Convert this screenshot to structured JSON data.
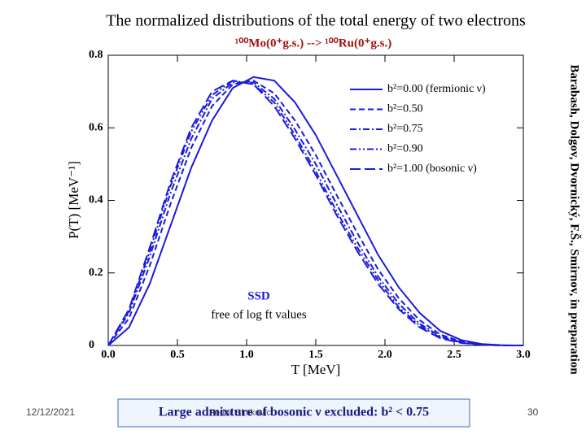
{
  "chart_data": {
    "type": "line",
    "title": "The normalized distributions of the total energy of two electrons",
    "subtitle": "¹⁰⁰Mo(0⁺g.s.) --> ¹⁰⁰Ru(0⁺g.s.)",
    "x_label": "T [MeV]",
    "y_label": "P(T) [MeV⁻¹]",
    "annotations": [
      "SSD",
      "free of log ft values"
    ],
    "x": [
      0,
      0.15,
      0.3,
      0.45,
      0.6,
      0.75,
      0.9,
      1.05,
      1.2,
      1.35,
      1.5,
      1.65,
      1.8,
      1.95,
      2.1,
      2.25,
      2.4,
      2.55,
      2.7,
      2.85,
      3.0
    ],
    "series": [
      {
        "name": "b²=0.00 (fermionic ν)",
        "color": "#1a1adc",
        "dash": "none",
        "values": [
          0,
          0.05,
          0.17,
          0.33,
          0.49,
          0.62,
          0.71,
          0.74,
          0.73,
          0.67,
          0.58,
          0.47,
          0.36,
          0.25,
          0.16,
          0.09,
          0.04,
          0.015,
          0.004,
          0.0005,
          0
        ]
      },
      {
        "name": "b²=0.50",
        "color": "#1a1adc",
        "dash": "7,4",
        "values": [
          0,
          0.075,
          0.22,
          0.39,
          0.545,
          0.66,
          0.72,
          0.73,
          0.695,
          0.62,
          0.525,
          0.415,
          0.31,
          0.21,
          0.13,
          0.07,
          0.03,
          0.011,
          0.003,
          0.0003,
          0
        ]
      },
      {
        "name": "b²=0.75",
        "color": "#1a1adc",
        "dash": "8,3,2,3",
        "values": [
          0,
          0.09,
          0.245,
          0.42,
          0.57,
          0.68,
          0.725,
          0.725,
          0.68,
          0.595,
          0.5,
          0.39,
          0.285,
          0.19,
          0.115,
          0.06,
          0.025,
          0.009,
          0.0025,
          0.0001,
          0
        ]
      },
      {
        "name": "b²=0.90",
        "color": "#1a1adc",
        "dash": "8,3,2,3,2,3",
        "values": [
          0,
          0.095,
          0.26,
          0.44,
          0.59,
          0.69,
          0.73,
          0.72,
          0.67,
          0.58,
          0.48,
          0.37,
          0.27,
          0.18,
          0.105,
          0.055,
          0.022,
          0.008,
          0.002,
          0,
          0
        ]
      },
      {
        "name": "b²=1.00 (bosonic ν)",
        "color": "#1a1adc",
        "dash": "13,5",
        "values": [
          0,
          0.1,
          0.27,
          0.45,
          0.6,
          0.7,
          0.73,
          0.72,
          0.66,
          0.57,
          0.47,
          0.36,
          0.26,
          0.17,
          0.1,
          0.05,
          0.02,
          0.007,
          0.002,
          0,
          0
        ]
      }
    ],
    "xlim": [
      0,
      3.0
    ],
    "ylim": [
      0,
      0.8
    ],
    "xticks": [
      {
        "value": 0,
        "label": "0.0"
      },
      0.5,
      {
        "value": 1,
        "label": "1.0"
      },
      1.5,
      {
        "value": 2,
        "label": "2.0"
      },
      2.5,
      {
        "value": 3,
        "label": "3.0"
      }
    ],
    "yticks": [
      0,
      0.2,
      0.4,
      0.6,
      0.8
    ],
    "grid": false
  },
  "slide": {
    "date": "12/12/2021",
    "author": "Fedor Simkovic",
    "page": "30",
    "conclusion": "Large admixture of bosonic ν excluded: b² < 0.75",
    "credit": "Barabash, Dolgov, Dvornický, F.Š., Smirnov, in preparation"
  }
}
